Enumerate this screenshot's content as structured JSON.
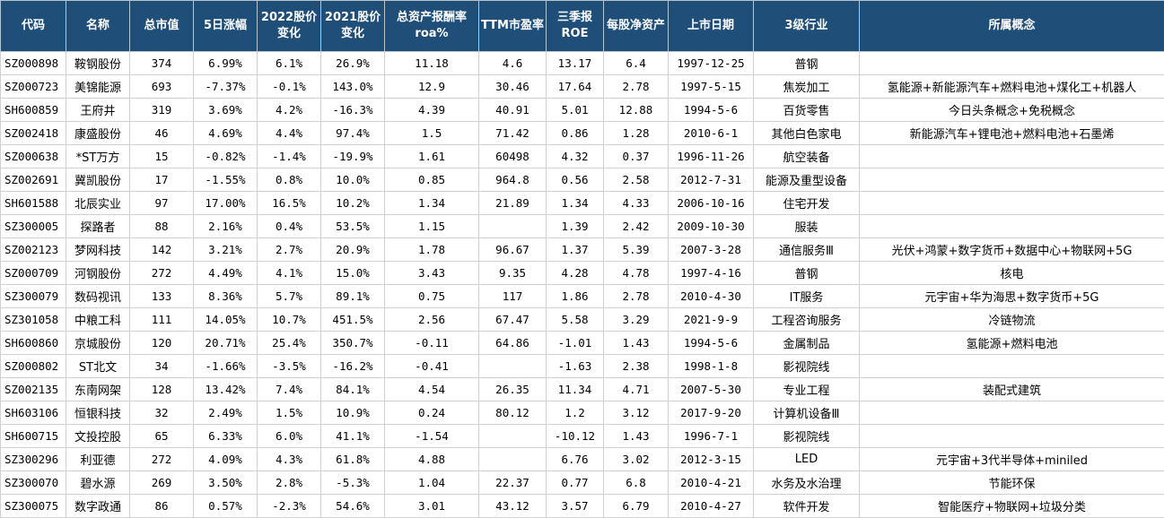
{
  "headers": [
    "代码",
    "名称",
    "总市值",
    "5日涨幅",
    "2022股价变化",
    "2021股价变化",
    "总资产报酬率roa%",
    "TTM市盈率",
    "三季报ROE",
    "每股净资产",
    "上市日期",
    "3级行业",
    "所属概念"
  ],
  "rows": [
    [
      "SZ000898",
      "鞍钢股份",
      "374",
      "6.99%",
      "6.1%",
      "26.9%",
      "11.18",
      "4.6",
      "13.17",
      "6.4",
      "1997-12-25",
      "普钢",
      ""
    ],
    [
      "SZ000723",
      "美锦能源",
      "693",
      "-7.37%",
      "-0.1%",
      "143.0%",
      "12.9",
      "30.46",
      "17.64",
      "2.78",
      "1997-5-15",
      "焦炭加工",
      "氢能源+新能源汽车+燃料电池+煤化工+机器人"
    ],
    [
      "SH600859",
      "王府井",
      "319",
      "3.69%",
      "4.2%",
      "-16.3%",
      "4.39",
      "40.91",
      "5.01",
      "12.88",
      "1994-5-6",
      "百货零售",
      "今日头条概念+免税概念"
    ],
    [
      "SZ002418",
      "康盛股份",
      "46",
      "4.69%",
      "4.4%",
      "97.4%",
      "1.5",
      "71.42",
      "0.86",
      "1.28",
      "2010-6-1",
      "其他白色家电",
      "新能源汽车+锂电池+燃料电池+石墨烯"
    ],
    [
      "SZ000638",
      "*ST万方",
      "15",
      "-0.82%",
      "-1.4%",
      "-19.9%",
      "1.61",
      "60498",
      "4.32",
      "0.37",
      "1996-11-26",
      "航空装备",
      ""
    ],
    [
      "SZ002691",
      "冀凯股份",
      "17",
      "-1.55%",
      "0.8%",
      "10.0%",
      "0.85",
      "964.8",
      "0.56",
      "2.58",
      "2012-7-31",
      "能源及重型设备",
      ""
    ],
    [
      "SH601588",
      "北辰实业",
      "97",
      "17.00%",
      "16.5%",
      "10.2%",
      "1.34",
      "21.89",
      "1.34",
      "4.33",
      "2006-10-16",
      "住宅开发",
      ""
    ],
    [
      "SZ300005",
      "探路者",
      "88",
      "2.16%",
      "0.4%",
      "53.5%",
      "1.15",
      "",
      "1.39",
      "2.42",
      "2009-10-30",
      "服装",
      ""
    ],
    [
      "SZ002123",
      "梦网科技",
      "142",
      "3.21%",
      "2.7%",
      "20.9%",
      "1.78",
      "96.67",
      "1.37",
      "5.39",
      "2007-3-28",
      "通信服务Ⅲ",
      "光伏+鸿蒙+数字货币+数据中心+物联网+5G"
    ],
    [
      "SZ000709",
      "河钢股份",
      "272",
      "4.49%",
      "4.1%",
      "15.0%",
      "3.43",
      "9.35",
      "4.28",
      "4.78",
      "1997-4-16",
      "普钢",
      "核电"
    ],
    [
      "SZ300079",
      "数码视讯",
      "133",
      "8.36%",
      "5.7%",
      "89.1%",
      "0.75",
      "117",
      "1.86",
      "2.78",
      "2010-4-30",
      "IT服务",
      "元宇宙+华为海思+数字货币+5G"
    ],
    [
      "SZ301058",
      "中粮工科",
      "111",
      "14.05%",
      "10.7%",
      "451.5%",
      "2.56",
      "67.47",
      "5.58",
      "3.29",
      "2021-9-9",
      "工程咨询服务",
      "冷链物流"
    ],
    [
      "SH600860",
      "京城股份",
      "120",
      "20.71%",
      "25.4%",
      "350.7%",
      "-0.11",
      "64.86",
      "-1.01",
      "1.43",
      "1994-5-6",
      "金属制品",
      "氢能源+燃料电池"
    ],
    [
      "SZ000802",
      "ST北文",
      "34",
      "-1.66%",
      "-3.5%",
      "-16.2%",
      "-0.41",
      "",
      "-1.63",
      "2.38",
      "1998-1-8",
      "影视院线",
      ""
    ],
    [
      "SZ002135",
      "东南网架",
      "128",
      "13.42%",
      "7.4%",
      "84.1%",
      "4.54",
      "26.35",
      "11.34",
      "4.71",
      "2007-5-30",
      "专业工程",
      "装配式建筑"
    ],
    [
      "SH603106",
      "恒银科技",
      "32",
      "2.49%",
      "1.5%",
      "10.9%",
      "0.24",
      "80.12",
      "1.2",
      "3.12",
      "2017-9-20",
      "计算机设备Ⅲ",
      ""
    ],
    [
      "SH600715",
      "文投控股",
      "65",
      "6.33%",
      "6.0%",
      "41.1%",
      "-1.54",
      "",
      "-10.12",
      "1.43",
      "1996-7-1",
      "影视院线",
      ""
    ],
    [
      "SZ300296",
      "利亚德",
      "272",
      "4.09%",
      "4.3%",
      "61.8%",
      "4.88",
      "",
      "6.76",
      "3.02",
      "2012-3-15",
      "LED",
      "元宇宙+3代半导体+miniled"
    ],
    [
      "SZ300070",
      "碧水源",
      "269",
      "3.50%",
      "2.8%",
      "-5.3%",
      "1.04",
      "22.37",
      "0.77",
      "6.8",
      "2010-4-21",
      "水务及水治理",
      "节能环保"
    ],
    [
      "SZ300075",
      "数字政通",
      "86",
      "0.57%",
      "-2.3%",
      "54.6%",
      "3.01",
      "43.12",
      "3.57",
      "6.79",
      "2010-4-27",
      "软件开发",
      "智能医疗+物联网+垃圾分类"
    ]
  ]
}
